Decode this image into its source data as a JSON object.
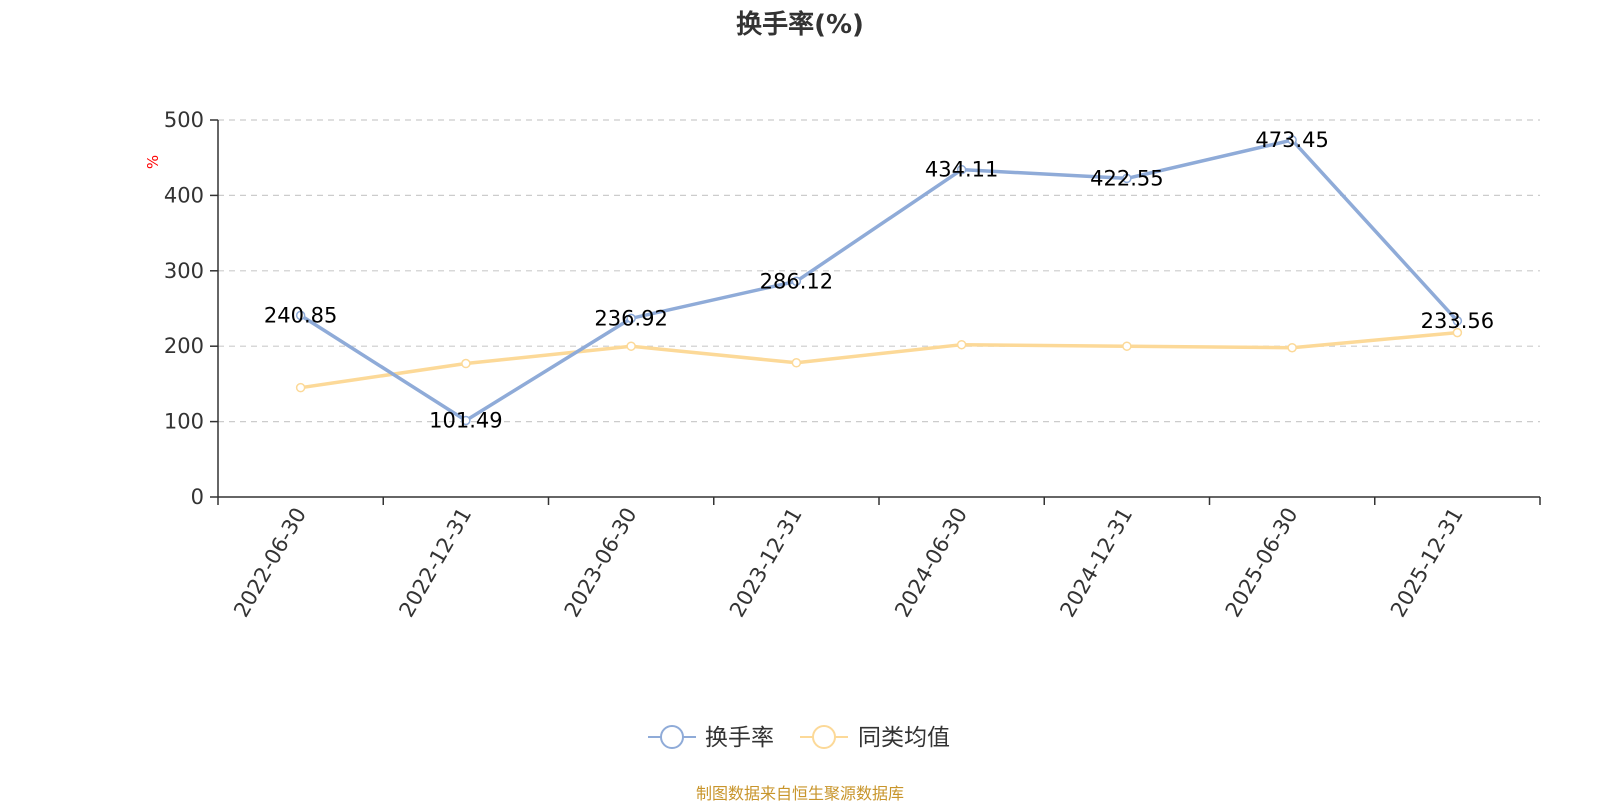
{
  "chart_data": {
    "type": "line",
    "title": "换手率(%)",
    "ylabel": "%",
    "xlabel": "",
    "categories": [
      "2022-06-30",
      "2022-12-31",
      "2023-06-30",
      "2023-12-31",
      "2024-06-30",
      "2024-12-31",
      "2025-06-30",
      "2025-12-31"
    ],
    "ylim": [
      0,
      500
    ],
    "yticks": [
      0,
      100,
      200,
      300,
      400,
      500
    ],
    "grid": true,
    "legend_position": "bottom-center",
    "series": [
      {
        "name": "换手率",
        "color": "#8fabd8",
        "values": [
          240.85,
          101.49,
          236.92,
          286.12,
          434.11,
          422.55,
          473.45,
          233.56
        ],
        "labels": [
          "240.85",
          "101.49",
          "236.92",
          "286.12",
          "434.11",
          "422.55",
          "473.45",
          "233.56"
        ]
      },
      {
        "name": "同类均值",
        "color": "#fcd998",
        "values": [
          145,
          177,
          200,
          178,
          202,
          200,
          198,
          218
        ],
        "labels": []
      }
    ]
  },
  "source_note": "制图数据来自恒生聚源数据库",
  "colors": {
    "axis": "#333333",
    "grid": "#cccccc",
    "ylabel": "#ff0000",
    "source": "#c8952b"
  }
}
